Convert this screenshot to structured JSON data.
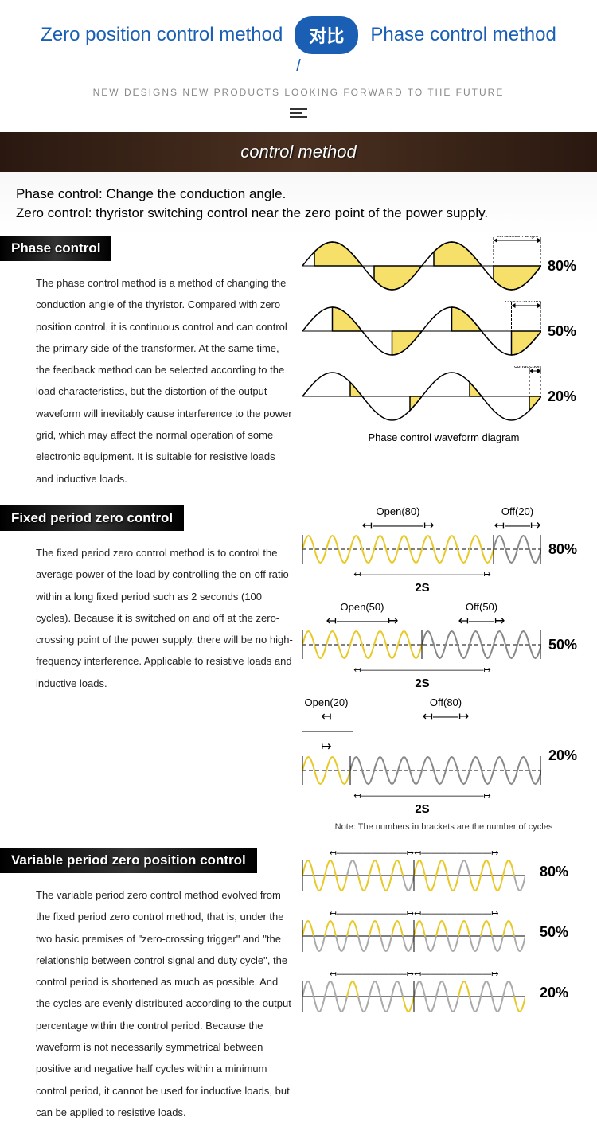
{
  "header": {
    "left_title": "Zero position control method",
    "pill": "对比",
    "right_title": "Phase control method",
    "tagline": "NEW DESIGNS  NEW PRODUCTS  LOOKING FORWARD TO THE FUTURE"
  },
  "banner": "control method",
  "intro": {
    "line1": "Phase control: Change the conduction angle.",
    "line2": "Zero control: thyristor switching control near the zero point of the power supply."
  },
  "phase": {
    "label": "Phase control",
    "body": "The phase control method is a method of changing the conduction angle of the thyristor. Compared with zero position control, it is continuous control and can control the primary side of the transformer. At the same time, the feedback method can be selected according to the load characteristics, but the distortion of the output waveform will inevitably cause interference to the power grid, which may affect the normal operation of some electronic equipment. It is suitable for resistive loads and inductive loads.",
    "angle_label": "conduction angle",
    "caption": "Phase control waveform diagram",
    "rows": [
      {
        "pct": "80%",
        "frac": 0.8
      },
      {
        "pct": "50%",
        "frac": 0.5
      },
      {
        "pct": "20%",
        "frac": 0.2
      }
    ],
    "colors": {
      "fill": "#f7e06a",
      "stroke": "#000000"
    }
  },
  "fixed": {
    "label": "Fixed period zero control",
    "body": "The fixed period zero control method is to control the average power of the load by controlling the on-off ratio within a long fixed period such as 2 seconds (100 cycles). Because it is switched on and off at the zero-crossing point of the power supply, there will be no high-frequency interference. Applicable to resistive loads and inductive loads.",
    "period": "2S",
    "note": "Note: The numbers in brackets are the number of cycles",
    "rows": [
      {
        "open": "Open(80)",
        "off": "Off(20)",
        "open_cycles": 8,
        "off_cycles": 2,
        "pct": "80%"
      },
      {
        "open": "Open(50)",
        "off": "Off(50)",
        "open_cycles": 5,
        "off_cycles": 5,
        "pct": "50%"
      },
      {
        "open": "Open(20)",
        "off": "Off(80)",
        "open_cycles": 2,
        "off_cycles": 8,
        "pct": "20%"
      }
    ],
    "colors": {
      "on": "#e8c92a",
      "off": "#888888"
    }
  },
  "variable": {
    "label": "Variable period zero position control",
    "body": "The variable period zero control method evolved from the fixed period zero control method, that is, under the two basic premises of \"zero-crossing trigger\" and \"the relationship between control signal and duty cycle\", the control period is shortened as much as possible, And the cycles are evenly distributed according to the output percentage within the control period. Because the waveform is not necessarily symmetrical between positive and negative half cycles within a minimum control period, it cannot be used for inductive loads, but can be applied to resistive loads.",
    "rows": [
      {
        "pct": "80%",
        "pattern": [
          1,
          1,
          1,
          1,
          0,
          1,
          1,
          1,
          1,
          0,
          1,
          1,
          1,
          1,
          0,
          1,
          1,
          1,
          1,
          0
        ]
      },
      {
        "pct": "50%",
        "pattern": [
          1,
          0,
          1,
          0,
          1,
          0,
          1,
          0,
          1,
          0,
          1,
          0,
          1,
          0,
          1,
          0,
          1,
          0,
          1,
          0
        ]
      },
      {
        "pct": "20%",
        "pattern": [
          0,
          0,
          0,
          0,
          1,
          0,
          0,
          0,
          0,
          1,
          0,
          0,
          0,
          0,
          1,
          0,
          0,
          0,
          0,
          1
        ]
      }
    ],
    "colors": {
      "on": "#e8c92a",
      "off": "#aaaaaa"
    }
  }
}
